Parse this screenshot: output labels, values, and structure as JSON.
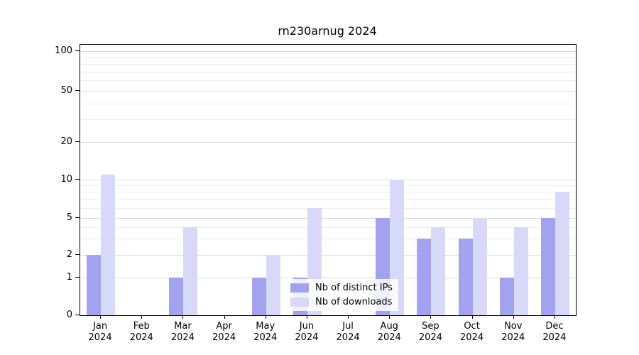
{
  "title": "rn230arnug 2024",
  "chart_data": {
    "type": "bar",
    "title": "rn230arnug 2024",
    "categories": [
      "Jan",
      "Feb",
      "Mar",
      "Apr",
      "May",
      "Jun",
      "Jul",
      "Aug",
      "Sep",
      "Oct",
      "Nov",
      "Dec"
    ],
    "year_label": "2024",
    "series": [
      {
        "name": "Nb of distinct IPs",
        "color": "#a2a2ee",
        "values": [
          2,
          0,
          1,
          0,
          1,
          1,
          0,
          5,
          3,
          3,
          1,
          5
        ]
      },
      {
        "name": "Nb of downloads",
        "color": "#d8d8f8",
        "values": [
          11,
          0,
          4,
          0,
          2,
          6,
          0,
          10,
          4,
          5,
          4,
          8
        ]
      }
    ],
    "yticks": [
      0,
      1,
      2,
      5,
      10,
      20,
      50,
      100
    ],
    "minor_yticks": [
      3,
      4,
      6,
      7,
      8,
      9,
      30,
      40,
      60,
      70,
      80,
      90
    ],
    "ylim": [
      0,
      100
    ],
    "scale": "log-like",
    "grid": true,
    "legend_position": "inside-bottom-center"
  },
  "colors": {
    "axis": "#000000",
    "grid_major": "#d9d9d9",
    "grid_minor": "#ebebeb",
    "background": "#ffffff"
  }
}
